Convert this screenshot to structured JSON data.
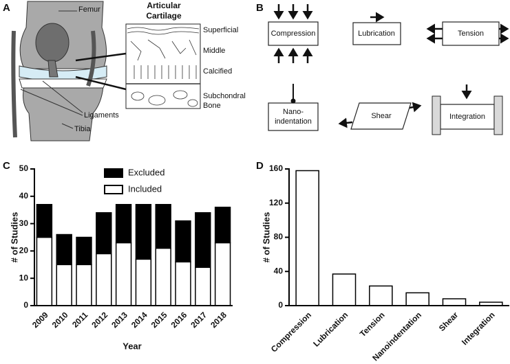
{
  "diagram_a": {
    "panel_label": "A",
    "femur": "Femur",
    "cartilage_title": [
      "Articular",
      "Cartilage"
    ],
    "zones": [
      "Superficial",
      "Middle",
      "Calcified"
    ],
    "subchondral": [
      "Subchondral",
      "Bone"
    ],
    "ligaments": "Ligaments",
    "tibia": "Tibia"
  },
  "diagram_b": {
    "panel_label": "B",
    "compression": "Compression",
    "lubrication": "Lubrication",
    "tension": "Tension",
    "nanoindentation": [
      "Nano-",
      "indentation"
    ],
    "shear": "Shear",
    "integration": "Integration"
  },
  "chart_data": [
    {
      "type": "bar",
      "stacked": true,
      "panel_label": "C",
      "xlabel": "Year",
      "ylabel": "# of Studies",
      "categories": [
        "2009",
        "2010",
        "2011",
        "2012",
        "2013",
        "2014",
        "2015",
        "2016",
        "2017",
        "2018"
      ],
      "series": [
        {
          "name": "Included",
          "color": "#ffffff",
          "values": [
            25,
            15,
            15,
            19,
            23,
            17,
            21,
            16,
            14,
            23
          ]
        },
        {
          "name": "Excluded",
          "color": "#000000",
          "values": [
            12,
            11,
            10,
            15,
            14,
            20,
            16,
            15,
            20,
            13
          ]
        }
      ],
      "ylim": [
        0,
        50
      ],
      "yticks": [
        0,
        10,
        20,
        30,
        40,
        50
      ],
      "legend": "top-center"
    },
    {
      "type": "bar",
      "panel_label": "D",
      "ylabel": "# of Studies",
      "categories": [
        "Compression",
        "Lubrication",
        "Tension",
        "Nanoindentation",
        "Shear",
        "Integration"
      ],
      "values": [
        158,
        37,
        23,
        15,
        8,
        4
      ],
      "color": "#ffffff",
      "ylim": [
        0,
        160
      ],
      "yticks": [
        0,
        40,
        80,
        120,
        160
      ]
    }
  ]
}
